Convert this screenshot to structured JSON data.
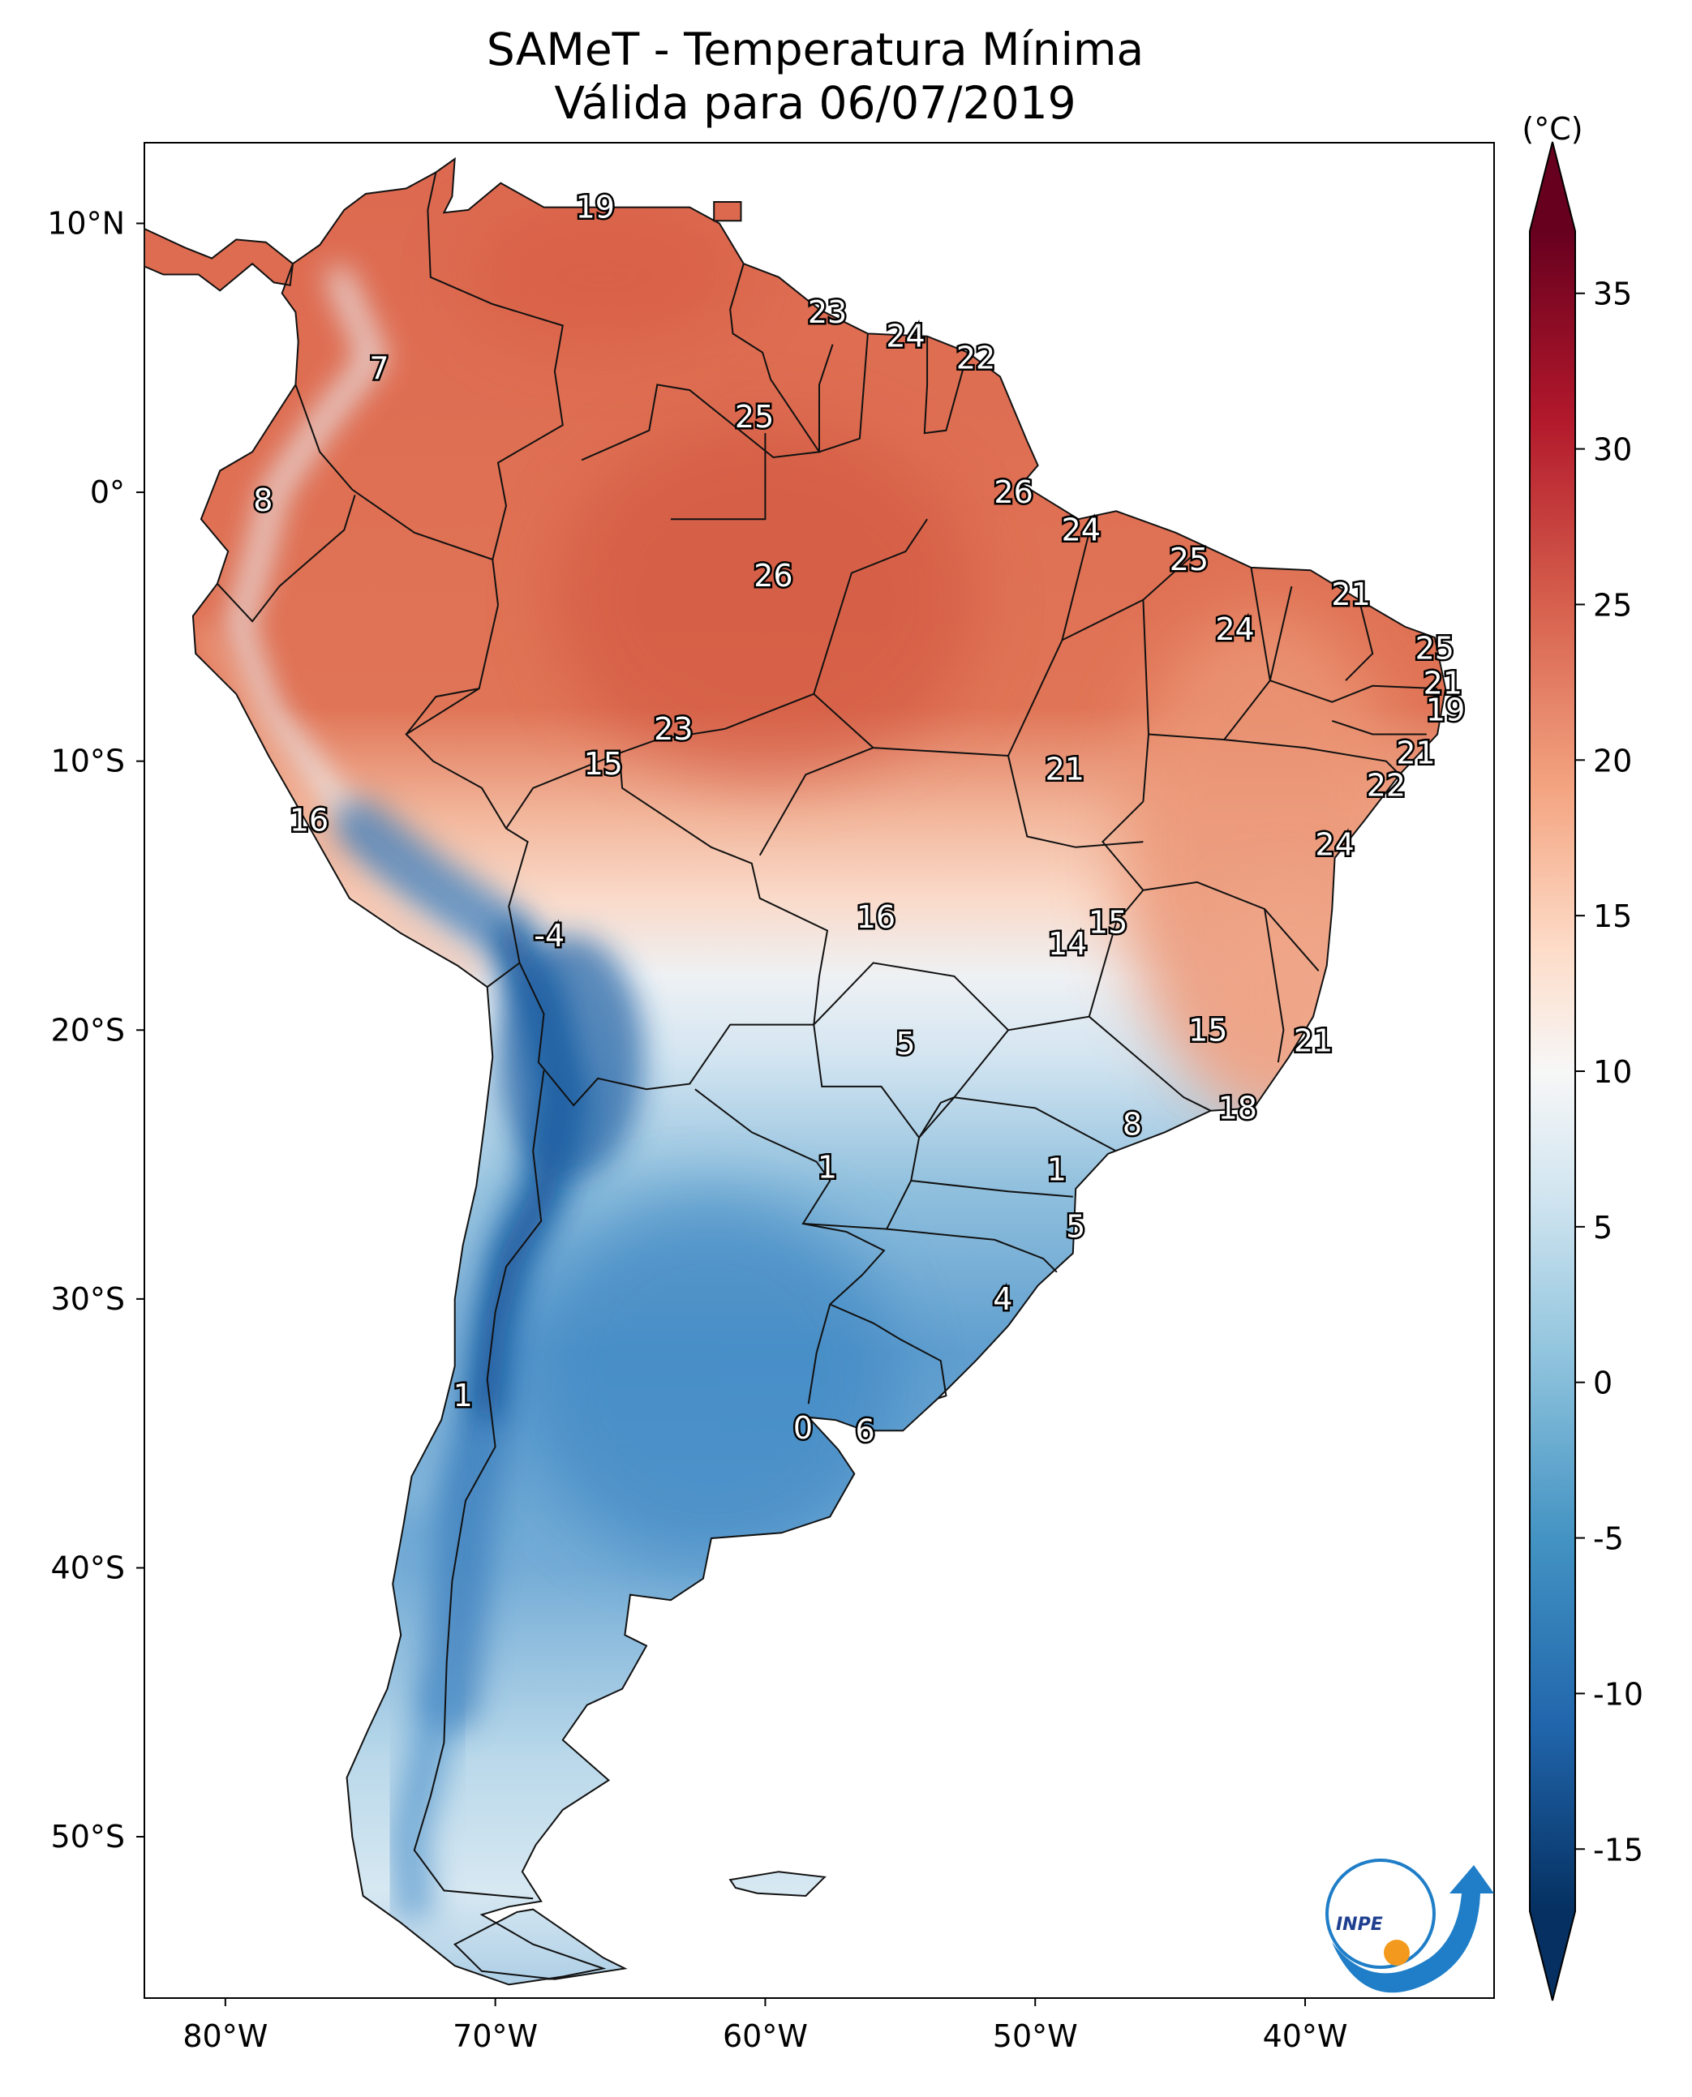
{
  "title": {
    "line1": "SAMeT - Temperatura Mínima",
    "line2": "Válida para 06/07/2019"
  },
  "map": {
    "lon_range": [
      -83,
      -33
    ],
    "lat_range": [
      -56,
      13
    ],
    "lon_ticks": [
      {
        "value": -80,
        "label": "80°W"
      },
      {
        "value": -70,
        "label": "70°W"
      },
      {
        "value": -60,
        "label": "60°W"
      },
      {
        "value": -50,
        "label": "50°W"
      },
      {
        "value": -40,
        "label": "40°W"
      }
    ],
    "lat_ticks": [
      {
        "value": 10,
        "label": "10°N"
      },
      {
        "value": 0,
        "label": "0°"
      },
      {
        "value": -10,
        "label": "10°S"
      },
      {
        "value": -20,
        "label": "20°S"
      },
      {
        "value": -30,
        "label": "30°S"
      },
      {
        "value": -40,
        "label": "40°S"
      },
      {
        "value": -50,
        "label": "50°S"
      }
    ],
    "value_labels": [
      {
        "text": "19",
        "lon": -66.3,
        "lat": 10.6
      },
      {
        "text": "23",
        "lon": -57.7,
        "lat": 6.7
      },
      {
        "text": "24",
        "lon": -54.8,
        "lat": 5.8
      },
      {
        "text": "22",
        "lon": -52.2,
        "lat": 5.0
      },
      {
        "text": "7",
        "lon": -74.3,
        "lat": 4.6
      },
      {
        "text": "25",
        "lon": -60.4,
        "lat": 2.8
      },
      {
        "text": "8",
        "lon": -78.6,
        "lat": -0.3
      },
      {
        "text": "26",
        "lon": -50.8,
        "lat": 0.0
      },
      {
        "text": "24",
        "lon": -48.3,
        "lat": -1.4
      },
      {
        "text": "25",
        "lon": -44.3,
        "lat": -2.5
      },
      {
        "text": "26",
        "lon": -59.7,
        "lat": -3.1
      },
      {
        "text": "21",
        "lon": -38.3,
        "lat": -3.8
      },
      {
        "text": "24",
        "lon": -42.6,
        "lat": -5.1
      },
      {
        "text": "25",
        "lon": -35.2,
        "lat": -5.8
      },
      {
        "text": "21",
        "lon": -34.9,
        "lat": -7.1
      },
      {
        "text": "19",
        "lon": -34.8,
        "lat": -8.1
      },
      {
        "text": "23",
        "lon": -63.4,
        "lat": -8.8
      },
      {
        "text": "21",
        "lon": -35.9,
        "lat": -9.7
      },
      {
        "text": "15",
        "lon": -66.0,
        "lat": -10.1
      },
      {
        "text": "21",
        "lon": -48.9,
        "lat": -10.3
      },
      {
        "text": "22",
        "lon": -37.0,
        "lat": -10.9
      },
      {
        "text": "16",
        "lon": -76.9,
        "lat": -12.2
      },
      {
        "text": "24",
        "lon": -38.9,
        "lat": -13.1
      },
      {
        "text": "16",
        "lon": -55.9,
        "lat": -15.8
      },
      {
        "text": "15",
        "lon": -47.3,
        "lat": -16.0
      },
      {
        "text": "14",
        "lon": -48.8,
        "lat": -16.8
      },
      {
        "text": "-4",
        "lon": -68.0,
        "lat": -16.5
      },
      {
        "text": "5",
        "lon": -54.8,
        "lat": -20.5
      },
      {
        "text": "15",
        "lon": -43.6,
        "lat": -20.0
      },
      {
        "text": "21",
        "lon": -39.7,
        "lat": -20.4
      },
      {
        "text": "18",
        "lon": -42.5,
        "lat": -22.9
      },
      {
        "text": "8",
        "lon": -46.4,
        "lat": -23.5
      },
      {
        "text": "1",
        "lon": -57.7,
        "lat": -25.1
      },
      {
        "text": "1",
        "lon": -49.2,
        "lat": -25.2
      },
      {
        "text": "5",
        "lon": -48.5,
        "lat": -27.3
      },
      {
        "text": "4",
        "lon": -51.2,
        "lat": -30.0
      },
      {
        "text": "1",
        "lon": -71.2,
        "lat": -33.6
      },
      {
        "text": "0",
        "lon": -58.6,
        "lat": -34.8
      },
      {
        "text": "6",
        "lon": -56.3,
        "lat": -34.9
      }
    ]
  },
  "colorbar": {
    "unit": "(°C)",
    "range": [
      -17,
      37
    ],
    "ticks": [
      35,
      30,
      25,
      20,
      15,
      10,
      5,
      0,
      -5,
      -10,
      -15
    ],
    "tick_labels": [
      "35",
      "30",
      "25",
      "20",
      "15",
      "10",
      "5",
      "0",
      "-5",
      "-10",
      "-15"
    ],
    "stops": [
      {
        "v": -17,
        "c": "#053061"
      },
      {
        "v": -11,
        "c": "#2166ac"
      },
      {
        "v": -5,
        "c": "#4393c3"
      },
      {
        "v": 1,
        "c": "#92c5de"
      },
      {
        "v": 6,
        "c": "#d1e5f0"
      },
      {
        "v": 10,
        "c": "#f7f7f7"
      },
      {
        "v": 14,
        "c": "#fddbc7"
      },
      {
        "v": 19,
        "c": "#f4a582"
      },
      {
        "v": 25,
        "c": "#d6604d"
      },
      {
        "v": 31,
        "c": "#b2182b"
      },
      {
        "v": 37,
        "c": "#67001f"
      }
    ]
  },
  "logo": {
    "text": "INPE",
    "color_blue": "#1f7ec7",
    "color_orange": "#f39a1e"
  },
  "colors": {
    "warm": "#e0735a",
    "warm_deep": "#d2553f",
    "cold": "#3d8ac6",
    "cold_deep": "#2464a8",
    "pale": "#f7efe9"
  }
}
